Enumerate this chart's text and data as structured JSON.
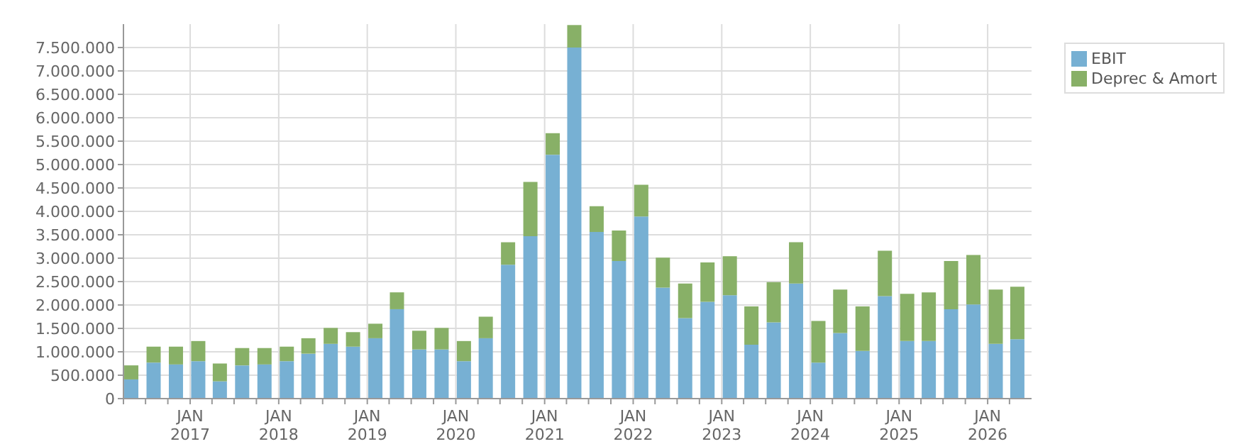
{
  "chart_data": {
    "type": "bar",
    "stacked": true,
    "x": [
      "2016-05",
      "2016-08",
      "2016-11",
      "2017-02",
      "2017-05",
      "2017-08",
      "2017-11",
      "2018-02",
      "2018-05",
      "2018-08",
      "2018-11",
      "2019-02",
      "2019-05",
      "2019-08",
      "2019-11",
      "2020-02",
      "2020-05",
      "2020-08",
      "2020-11",
      "2021-02",
      "2021-05",
      "2021-08",
      "2021-11",
      "2022-02",
      "2022-05",
      "2022-08",
      "2022-11",
      "2023-02",
      "2023-05",
      "2023-08",
      "2023-11",
      "2024-02",
      "2024-05",
      "2024-08",
      "2024-11",
      "2025-02",
      "2025-05",
      "2025-08",
      "2025-11",
      "2026-02",
      "2026-05"
    ],
    "series": [
      {
        "name": "EBIT",
        "color": "#77b0d3",
        "values": [
          410000,
          770000,
          730000,
          800000,
          370000,
          710000,
          730000,
          800000,
          960000,
          1170000,
          1110000,
          1290000,
          1910000,
          1050000,
          1050000,
          800000,
          1290000,
          2860000,
          3470000,
          5210000,
          7500000,
          3560000,
          2940000,
          3890000,
          2370000,
          1720000,
          2070000,
          2210000,
          1150000,
          1630000,
          2460000,
          770000,
          1400000,
          1020000,
          2190000,
          1230000,
          1230000,
          1910000,
          2010000,
          1170000,
          1270000
        ]
      },
      {
        "name": "Deprec & Amort",
        "color": "#88b067",
        "values": [
          300000,
          340000,
          380000,
          430000,
          380000,
          370000,
          350000,
          310000,
          330000,
          340000,
          310000,
          310000,
          360000,
          400000,
          460000,
          430000,
          460000,
          480000,
          1160000,
          460000,
          480000,
          550000,
          650000,
          680000,
          640000,
          740000,
          840000,
          830000,
          820000,
          860000,
          880000,
          890000,
          930000,
          950000,
          970000,
          1010000,
          1040000,
          1030000,
          1060000,
          1160000,
          1120000
        ]
      }
    ],
    "xlim": [
      "2016-04",
      "2026-07"
    ],
    "xticks": [
      {
        "value": "2016-04",
        "label": null
      },
      {
        "value": "2016-07",
        "label": null
      },
      {
        "value": "2016-10",
        "label": null
      },
      {
        "value": "2017-01",
        "label": "JAN 2017"
      },
      {
        "value": "2017-04",
        "label": null
      },
      {
        "value": "2017-07",
        "label": null
      },
      {
        "value": "2017-10",
        "label": null
      },
      {
        "value": "2018-01",
        "label": "JAN 2018"
      },
      {
        "value": "2018-04",
        "label": null
      },
      {
        "value": "2018-07",
        "label": null
      },
      {
        "value": "2018-10",
        "label": null
      },
      {
        "value": "2019-01",
        "label": "JAN 2019"
      },
      {
        "value": "2019-04",
        "label": null
      },
      {
        "value": "2019-07",
        "label": null
      },
      {
        "value": "2019-10",
        "label": null
      },
      {
        "value": "2020-01",
        "label": "JAN 2020"
      },
      {
        "value": "2020-04",
        "label": null
      },
      {
        "value": "2020-07",
        "label": null
      },
      {
        "value": "2020-10",
        "label": null
      },
      {
        "value": "2021-01",
        "label": "JAN 2021"
      },
      {
        "value": "2021-04",
        "label": null
      },
      {
        "value": "2021-07",
        "label": null
      },
      {
        "value": "2021-10",
        "label": null
      },
      {
        "value": "2022-01",
        "label": "JAN 2022"
      },
      {
        "value": "2022-04",
        "label": null
      },
      {
        "value": "2022-07",
        "label": null
      },
      {
        "value": "2022-10",
        "label": null
      },
      {
        "value": "2023-01",
        "label": "JAN 2023"
      },
      {
        "value": "2023-04",
        "label": null
      },
      {
        "value": "2023-07",
        "label": null
      },
      {
        "value": "2023-10",
        "label": null
      },
      {
        "value": "2024-01",
        "label": "JAN 2024"
      },
      {
        "value": "2024-04",
        "label": null
      },
      {
        "value": "2024-07",
        "label": null
      },
      {
        "value": "2024-10",
        "label": null
      },
      {
        "value": "2025-01",
        "label": "JAN 2025"
      },
      {
        "value": "2025-04",
        "label": null
      },
      {
        "value": "2025-07",
        "label": null
      },
      {
        "value": "2025-10",
        "label": null
      },
      {
        "value": "2026-01",
        "label": "JAN 2026"
      },
      {
        "value": "2026-04",
        "label": null
      }
    ],
    "ylim": [
      0,
      8000000
    ],
    "yticks": [
      {
        "value": 0,
        "label": "0"
      },
      {
        "value": 500000,
        "label": "500.000"
      },
      {
        "value": 1000000,
        "label": "1.000.000"
      },
      {
        "value": 1500000,
        "label": "1.500.000"
      },
      {
        "value": 2000000,
        "label": "2.000.000"
      },
      {
        "value": 2500000,
        "label": "2.500.000"
      },
      {
        "value": 3000000,
        "label": "3.000.000"
      },
      {
        "value": 3500000,
        "label": "3.500.000"
      },
      {
        "value": 4000000,
        "label": "4.000.000"
      },
      {
        "value": 4500000,
        "label": "4.500.000"
      },
      {
        "value": 5000000,
        "label": "5.000.000"
      },
      {
        "value": 5500000,
        "label": "5.500.000"
      },
      {
        "value": 6000000,
        "label": "6.000.000"
      },
      {
        "value": 6500000,
        "label": "6.500.000"
      },
      {
        "value": 7000000,
        "label": "7.000.000"
      },
      {
        "value": 7500000,
        "label": "7.500.000"
      }
    ],
    "grid": true,
    "legend": "top right"
  }
}
